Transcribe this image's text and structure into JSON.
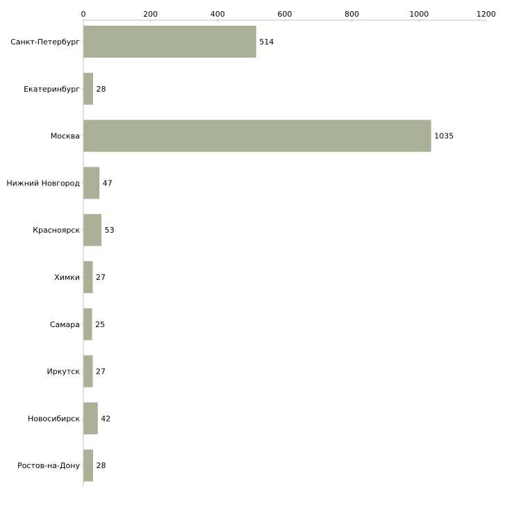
{
  "chart_data": {
    "type": "bar",
    "orientation": "horizontal",
    "title": "",
    "xlabel": "",
    "ylabel": "",
    "xlim": [
      0,
      1200
    ],
    "x_ticks": [
      0,
      200,
      400,
      600,
      800,
      1000,
      1200
    ],
    "grid": false,
    "categories": [
      "Санкт-Петербург",
      "Екатеринбург",
      "Москва",
      "Нижний Новгород",
      "Красноярск",
      "Химки",
      "Самара",
      "Иркутск",
      "Новосибирск",
      "Ростов-на-Дону"
    ],
    "values": [
      514,
      28,
      1035,
      47,
      53,
      27,
      25,
      27,
      42,
      28
    ],
    "bar_color": "#abb197",
    "axis_color": "#c0c0b8",
    "tick_color": "#cfd3b4"
  }
}
